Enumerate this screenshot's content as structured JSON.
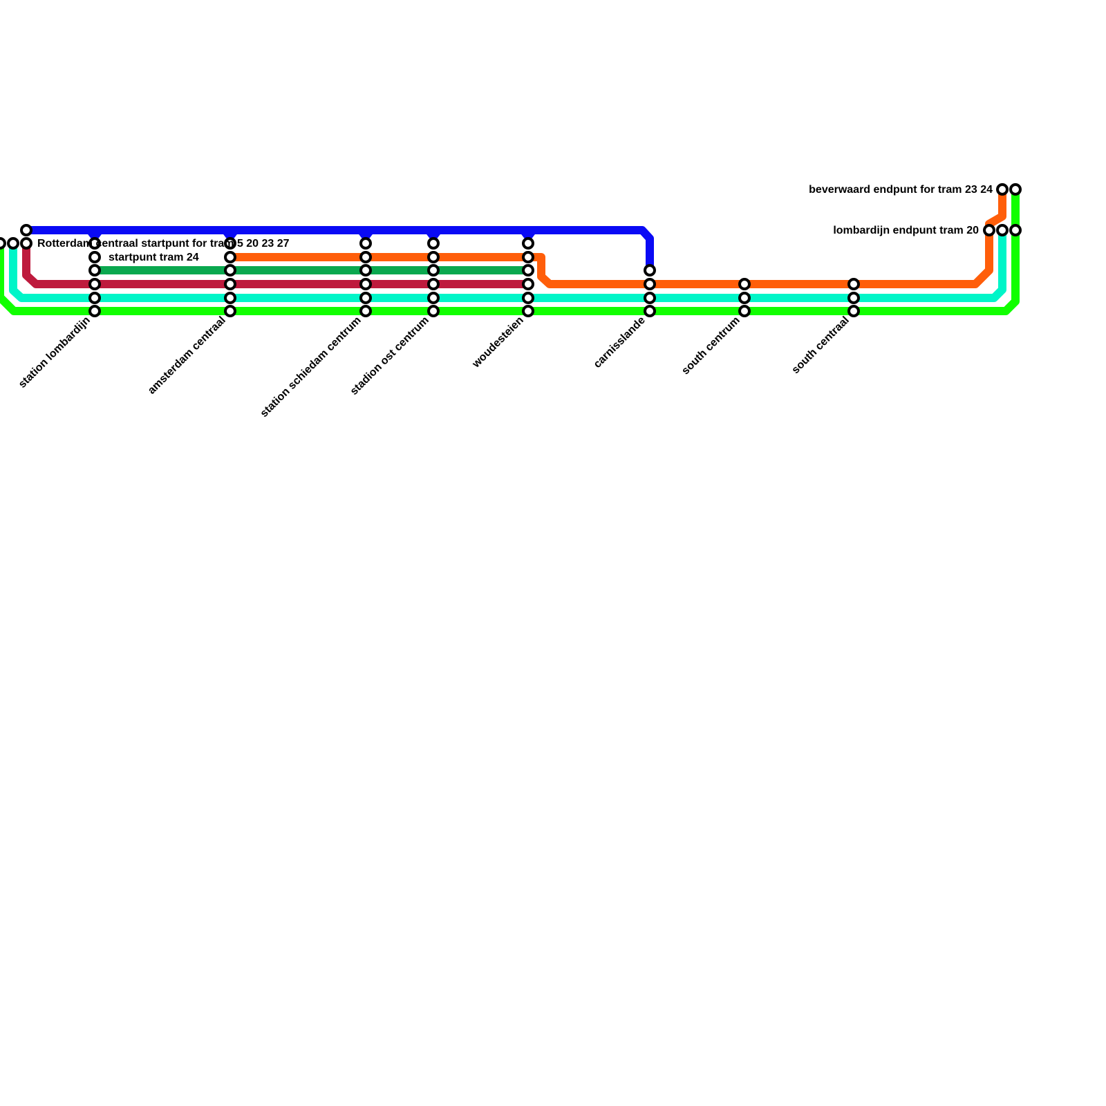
{
  "start_labels": [
    "Rotterdam centraal  startpunt for tram 5  20 23 27",
    "startpunt tram 24"
  ],
  "station_labels": [
    "station lombardijn",
    "amsterdam centraal",
    "station schiedam centrum",
    "stadion ost centrum",
    "woudesteien",
    "carnisslande",
    "south centrum",
    "south centraal"
  ],
  "terminal_labels": [
    "beverwaard endpunt for tram 23 24",
    "lombardijn endpunt tram 20"
  ]
}
